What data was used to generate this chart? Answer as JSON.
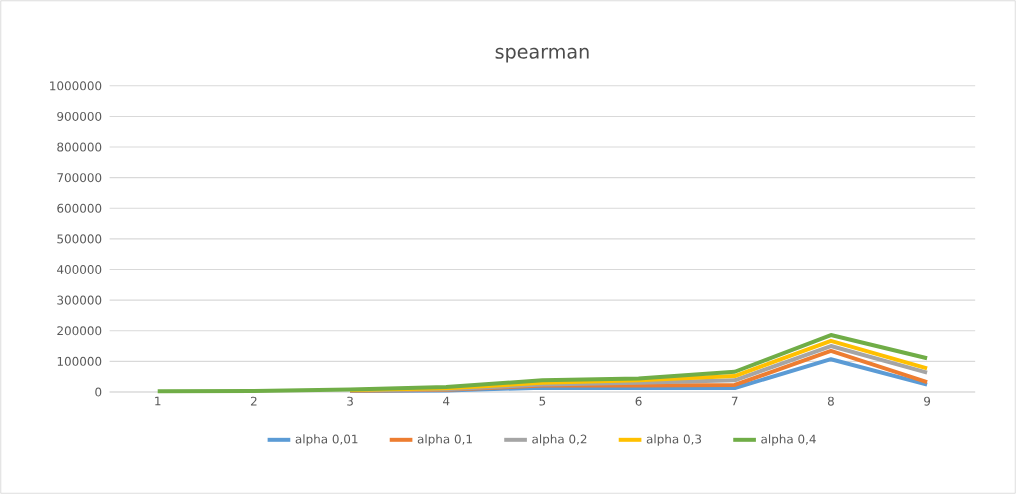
{
  "chart_data": {
    "type": "line",
    "title": "spearman",
    "categories": [
      "1",
      "2",
      "3",
      "4",
      "5",
      "6",
      "7",
      "8",
      "9"
    ],
    "ylim": [
      0,
      1000000
    ],
    "yticks": [
      0,
      100000,
      200000,
      300000,
      400000,
      500000,
      600000,
      700000,
      800000,
      900000,
      1000000
    ],
    "grid": "y",
    "legend": "bottom",
    "marker": "none",
    "series": [
      {
        "name": "alpha 0,01",
        "color": "#5b9bd5",
        "values": [
          null,
          null,
          3000,
          5000,
          14000,
          13000,
          13000,
          107000,
          24000
        ]
      },
      {
        "name": "alpha 0,1",
        "color": "#ed7d31",
        "values": [
          null,
          null,
          4000,
          7000,
          21000,
          21000,
          23000,
          134000,
          32000
        ]
      },
      {
        "name": "alpha 0,2",
        "color": "#a5a5a5",
        "values": [
          null,
          null,
          5000,
          9000,
          24000,
          30000,
          38000,
          150000,
          63000
        ]
      },
      {
        "name": "alpha 0,3",
        "color": "#ffc000",
        "values": [
          null,
          null,
          6000,
          12000,
          30000,
          38000,
          52000,
          167000,
          77000
        ]
      },
      {
        "name": "alpha 0,4",
        "color": "#70ad47",
        "values": [
          2000,
          3000,
          8000,
          16000,
          38000,
          44000,
          66000,
          186000,
          110000
        ]
      }
    ]
  }
}
